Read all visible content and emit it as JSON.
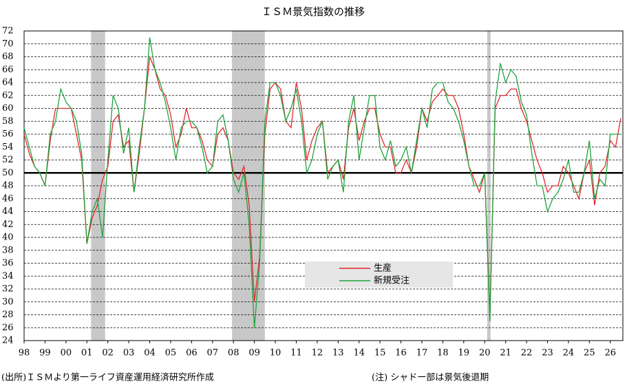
{
  "chart_data": {
    "type": "line",
    "title": "ＩＳＭ景気指数の推移",
    "x": [
      1998,
      1998.25,
      1998.5,
      1998.75,
      1999,
      1999.25,
      1999.5,
      1999.75,
      2000,
      2000.25,
      2000.5,
      2000.75,
      2001,
      2001.25,
      2001.5,
      2001.75,
      2002,
      2002.25,
      2002.5,
      2002.75,
      2003,
      2003.25,
      2003.5,
      2003.75,
      2004,
      2004.25,
      2004.5,
      2004.75,
      2005,
      2005.25,
      2005.5,
      2005.75,
      2006,
      2006.25,
      2006.5,
      2006.75,
      2007,
      2007.25,
      2007.5,
      2007.75,
      2008,
      2008.25,
      2008.5,
      2008.75,
      2009,
      2009.25,
      2009.5,
      2009.75,
      2010,
      2010.25,
      2010.5,
      2010.75,
      2011,
      2011.25,
      2011.5,
      2011.75,
      2012,
      2012.25,
      2012.5,
      2012.75,
      2013,
      2013.25,
      2013.5,
      2013.75,
      2014,
      2014.25,
      2014.5,
      2014.75,
      2015,
      2015.25,
      2015.5,
      2015.75,
      2016,
      2016.25,
      2016.5,
      2016.75,
      2017,
      2017.25,
      2017.5,
      2017.75,
      2018,
      2018.25,
      2018.5,
      2018.75,
      2019,
      2019.25,
      2019.5,
      2019.75,
      2020,
      2020.25,
      2020.5,
      2020.75,
      2021,
      2021.25,
      2021.5,
      2021.75,
      2022,
      2022.25,
      2022.5,
      2022.75,
      2023,
      2023.25,
      2023.5,
      2023.75,
      2024,
      2024.25,
      2024.5,
      2024.75,
      2025,
      2025.25,
      2025.5,
      2025.75,
      2026,
      2026.25,
      2026.5
    ],
    "series": [
      {
        "name": "生産",
        "color": "#e3262c",
        "values": [
          56,
          53,
          51,
          50,
          48,
          55,
          60,
          60,
          60,
          60,
          56,
          52,
          39,
          43,
          45,
          49,
          51,
          58,
          59,
          54,
          55,
          47,
          53,
          60,
          68,
          66,
          63,
          62,
          59,
          54,
          56,
          60,
          57,
          57,
          55,
          52,
          51,
          56,
          57,
          55,
          50,
          49,
          51,
          45,
          30,
          37,
          56,
          63,
          64,
          63,
          58,
          57,
          64,
          60,
          52,
          55,
          57,
          58,
          50,
          51,
          52,
          49,
          57,
          60,
          55,
          58,
          60,
          60,
          56,
          54,
          54,
          50,
          50,
          52,
          50,
          54,
          60,
          58,
          61,
          62,
          63,
          62,
          62,
          60,
          56,
          51,
          49,
          47,
          50,
          28,
          60,
          62,
          62,
          63,
          63,
          60,
          58,
          55,
          52,
          50,
          47,
          48,
          48,
          51,
          50,
          48,
          46,
          50,
          52,
          45,
          50,
          51,
          55,
          54,
          58.5
        ]
      },
      {
        "name": "新規受注",
        "color": "#1fa33c",
        "values": [
          57,
          54,
          51,
          50,
          48,
          56,
          58,
          63,
          61,
          60,
          58,
          53,
          39,
          44,
          46,
          40,
          52,
          62,
          60,
          53,
          57,
          47,
          54,
          60,
          71,
          66,
          64,
          61,
          57,
          52,
          57,
          58,
          58,
          57,
          54,
          50,
          51,
          58,
          59,
          55,
          49,
          47,
          50,
          42,
          26,
          36,
          58,
          64,
          64,
          62,
          58,
          60,
          63,
          58,
          50,
          52,
          56,
          58,
          49,
          51,
          52,
          47,
          58,
          62,
          52,
          57,
          62,
          62,
          54,
          52,
          55,
          51,
          52,
          54,
          50,
          55,
          60,
          57,
          63,
          64,
          64,
          61,
          60,
          58,
          55,
          51,
          48,
          48,
          50,
          27,
          61,
          67,
          64,
          66,
          65,
          61,
          59,
          53,
          48,
          48,
          44,
          46,
          47,
          49,
          52,
          47,
          47,
          50,
          55,
          46,
          49,
          48,
          56,
          56,
          56
        ]
      }
    ],
    "xlim": [
      1998,
      2026.6
    ],
    "xticks": [
      {
        "value": 1998,
        "label": "98"
      },
      {
        "value": 1999,
        "label": "99"
      },
      {
        "value": 2000,
        "label": "00"
      },
      {
        "value": 2001,
        "label": "01"
      },
      {
        "value": 2002,
        "label": "02"
      },
      {
        "value": 2003,
        "label": "03"
      },
      {
        "value": 2004,
        "label": "04"
      },
      {
        "value": 2005,
        "label": "05"
      },
      {
        "value": 2006,
        "label": "06"
      },
      {
        "value": 2007,
        "label": "07"
      },
      {
        "value": 2008,
        "label": "08"
      },
      {
        "value": 2009,
        "label": "09"
      },
      {
        "value": 2010,
        "label": "10"
      },
      {
        "value": 2011,
        "label": "11"
      },
      {
        "value": 2012,
        "label": "12"
      },
      {
        "value": 2013,
        "label": "13"
      },
      {
        "value": 2014,
        "label": "14"
      },
      {
        "value": 2015,
        "label": "15"
      },
      {
        "value": 2016,
        "label": "16"
      },
      {
        "value": 2017,
        "label": "17"
      },
      {
        "value": 2018,
        "label": "18"
      },
      {
        "value": 2019,
        "label": "19"
      },
      {
        "value": 2020,
        "label": "20"
      },
      {
        "value": 2021,
        "label": "21"
      },
      {
        "value": 2022,
        "label": "22"
      },
      {
        "value": 2023,
        "label": "23"
      },
      {
        "value": 2024,
        "label": "24"
      },
      {
        "value": 2025,
        "label": "25"
      },
      {
        "value": 2026,
        "label": "26"
      }
    ],
    "ylim": [
      24,
      72
    ],
    "yticks": [
      24,
      26,
      28,
      30,
      32,
      34,
      36,
      38,
      40,
      42,
      44,
      46,
      48,
      50,
      52,
      54,
      56,
      58,
      60,
      62,
      64,
      66,
      68,
      70,
      72
    ],
    "grid": true,
    "reference_line": 50,
    "recessions": [
      [
        2001.2,
        2001.87
      ],
      [
        2007.93,
        2009.5
      ],
      [
        2020.12,
        2020.28
      ]
    ],
    "recession_color": "#c8c8c8",
    "source": "(出所)ＩＳＭより第一ライフ資産運用経済研究所作成",
    "note": "(注) シャドー部は景気後退期"
  }
}
